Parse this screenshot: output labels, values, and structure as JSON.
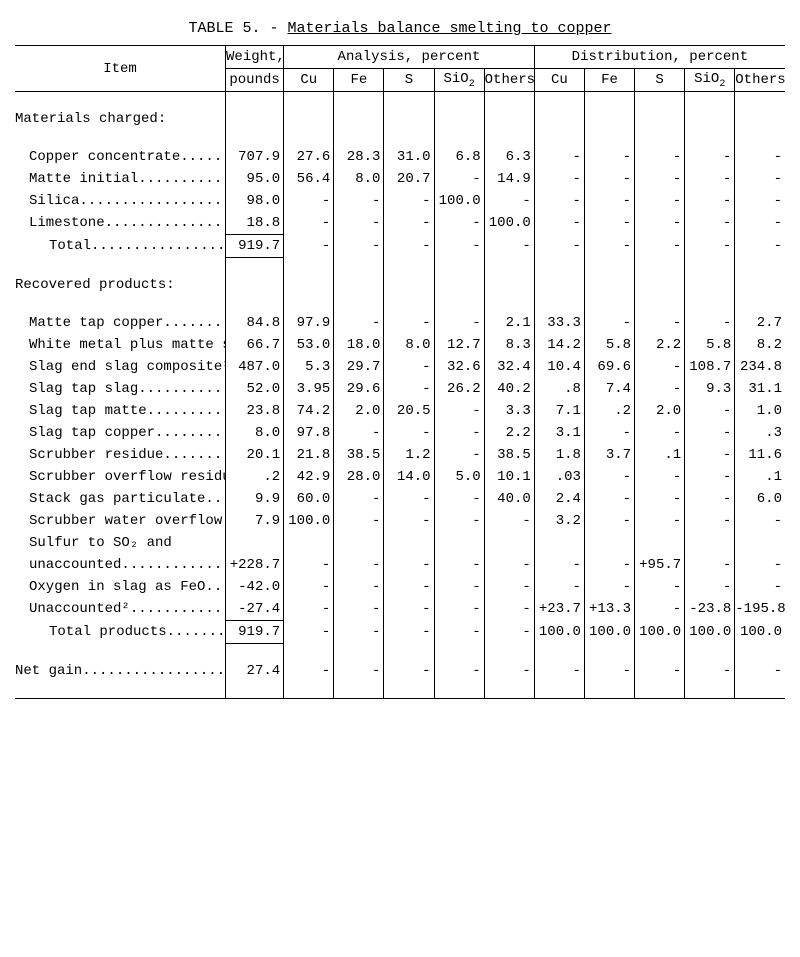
{
  "title_prefix": "TABLE 5. - ",
  "title_main": "Materials balance smelting to copper",
  "headers": {
    "item": "Item",
    "weight_top": "Weight,",
    "weight_bot": "pounds",
    "analysis": "Analysis, percent",
    "distribution": "Distribution, percent",
    "cols": [
      "Cu",
      "Fe",
      "S",
      "SiO",
      "Others",
      "Cu",
      "Fe",
      "S",
      "SiO",
      "Others"
    ],
    "sub2": "2"
  },
  "sections": {
    "charged": "Materials charged:",
    "recovered": "Recovered products:"
  },
  "rows": [
    {
      "k": "charged_hdr",
      "section": true,
      "label": "Materials charged:",
      "indent": 0
    },
    {
      "k": "spacer1",
      "blank": true
    },
    {
      "k": "cu_conc",
      "label": "Copper concentrate.........",
      "indent": 1,
      "wt": "707.9",
      "a": [
        "27.6",
        "28.3",
        "31.0",
        "6.8",
        "6.3"
      ],
      "d": [
        "-",
        "-",
        "-",
        "-",
        "-"
      ]
    },
    {
      "k": "matte_init",
      "label": "Matte initial..............",
      "indent": 1,
      "wt": "95.0",
      "a": [
        "56.4",
        "8.0",
        "20.7",
        "-",
        "14.9"
      ],
      "d": [
        "-",
        "-",
        "-",
        "-",
        "-"
      ]
    },
    {
      "k": "silica",
      "label": "Silica.....................",
      "indent": 1,
      "wt": "98.0",
      "a": [
        "-",
        "-",
        "-",
        "100.0",
        "-"
      ],
      "d": [
        "-",
        "-",
        "-",
        "-",
        "-"
      ]
    },
    {
      "k": "limestone",
      "label": "Limestone..................",
      "indent": 1,
      "wt": "18.8",
      "a": [
        "-",
        "-",
        "-",
        "-",
        "100.0"
      ],
      "d": [
        "-",
        "-",
        "-",
        "-",
        "-"
      ],
      "total_under": true
    },
    {
      "k": "total_charged",
      "label": "Total.................",
      "indent": 2,
      "wt": "919.7",
      "a": [
        "-",
        "-",
        "-",
        "-",
        "-"
      ],
      "d": [
        "-",
        "-",
        "-",
        "-",
        "-"
      ],
      "wt_box": true
    },
    {
      "k": "spacer2",
      "blank": true
    },
    {
      "k": "recovered_hdr",
      "section": true,
      "label": "Recovered products:",
      "indent": 0
    },
    {
      "k": "spacer3",
      "blank": true
    },
    {
      "k": "matte_tap_cu",
      "label": "Matte tap copper...........",
      "indent": 1,
      "wt": "84.8",
      "a": [
        "97.9",
        "-",
        "-",
        "-",
        "2.1"
      ],
      "d": [
        "33.3",
        "-",
        "-",
        "-",
        "2.7"
      ]
    },
    {
      "k": "white_metal",
      "label": "White metal plus matte slag",
      "indent": 1,
      "wt": "66.7",
      "a": [
        "53.0",
        "18.0",
        "8.0",
        "12.7",
        "8.3"
      ],
      "d": [
        "14.2",
        "5.8",
        "2.2",
        "5.8",
        "8.2"
      ]
    },
    {
      "k": "slag_end",
      "label": "Slag end slag composite¹...",
      "indent": 1,
      "wt": "487.0",
      "a": [
        "5.3",
        "29.7",
        "-",
        "32.6",
        "32.4"
      ],
      "d": [
        "10.4",
        "69.6",
        "-",
        "108.7",
        "234.8"
      ]
    },
    {
      "k": "slag_tap_slag",
      "label": "Slag tap slag..............",
      "indent": 1,
      "wt": "52.0",
      "a": [
        "3.95",
        "29.6",
        "-",
        "26.2",
        "40.2"
      ],
      "d": [
        ".8",
        "7.4",
        "-",
        "9.3",
        "31.1"
      ]
    },
    {
      "k": "slag_tap_matte",
      "label": "Slag tap matte.............",
      "indent": 1,
      "wt": "23.8",
      "a": [
        "74.2",
        "2.0",
        "20.5",
        "-",
        "3.3"
      ],
      "d": [
        "7.1",
        ".2",
        "2.0",
        "-",
        "1.0"
      ]
    },
    {
      "k": "slag_tap_cu",
      "label": "Slag tap copper............",
      "indent": 1,
      "wt": "8.0",
      "a": [
        "97.8",
        "-",
        "-",
        "-",
        "2.2"
      ],
      "d": [
        "3.1",
        "-",
        "-",
        "-",
        ".3"
      ]
    },
    {
      "k": "scrub_res",
      "label": "Scrubber residue...........",
      "indent": 1,
      "wt": "20.1",
      "a": [
        "21.8",
        "38.5",
        "1.2",
        "-",
        "38.5"
      ],
      "d": [
        "1.8",
        "3.7",
        ".1",
        "-",
        "11.6"
      ]
    },
    {
      "k": "scrub_over_res",
      "label": "Scrubber overflow residue..",
      "indent": 1,
      "wt": ".2",
      "a": [
        "42.9",
        "28.0",
        "14.0",
        "5.0",
        "10.1"
      ],
      "d": [
        ".03",
        "-",
        "-",
        "-",
        ".1"
      ]
    },
    {
      "k": "stack_gas",
      "label": "Stack gas particulate......",
      "indent": 1,
      "wt": "9.9",
      "a": [
        "60.0",
        "-",
        "-",
        "-",
        "40.0"
      ],
      "d": [
        "2.4",
        "-",
        "-",
        "-",
        "6.0"
      ]
    },
    {
      "k": "scrub_water",
      "label": "Scrubber water overflow....",
      "indent": 1,
      "wt": "7.9",
      "a": [
        "100.0",
        "-",
        "-",
        "-",
        "-"
      ],
      "d": [
        "3.2",
        "-",
        "-",
        "-",
        "-"
      ]
    },
    {
      "k": "sulfur_line1",
      "label": "Sulfur to SO₂ and",
      "indent": 1,
      "wt": "",
      "a": [
        "",
        "",
        "",
        "",
        ""
      ],
      "d": [
        "",
        "",
        "",
        "",
        ""
      ]
    },
    {
      "k": "sulfur_line2",
      "label": " unaccounted...............",
      "indent": 1,
      "wt": "+228.7",
      "a": [
        "-",
        "-",
        "-",
        "-",
        "-"
      ],
      "d": [
        "-",
        "-",
        "+95.7",
        "-",
        "-"
      ]
    },
    {
      "k": "oxy_slag",
      "label": "Oxygen in slag as FeO......",
      "indent": 1,
      "wt": "-42.0",
      "a": [
        "-",
        "-",
        "-",
        "-",
        "-"
      ],
      "d": [
        "-",
        "-",
        "-",
        "-",
        "-"
      ]
    },
    {
      "k": "unacct",
      "label": "Unaccounted²...............",
      "indent": 1,
      "wt": "-27.4",
      "a": [
        "-",
        "-",
        "-",
        "-",
        "-"
      ],
      "d": [
        "+23.7",
        "+13.3",
        "-",
        "-23.8",
        "-195.8"
      ],
      "total_under": true
    },
    {
      "k": "total_prod",
      "label": "Total products........",
      "indent": 2,
      "wt": "919.7",
      "a": [
        "-",
        "-",
        "-",
        "-",
        "-"
      ],
      "d": [
        "100.0",
        "100.0",
        "100.0",
        "100.0",
        "100.0"
      ],
      "wt_box": true
    },
    {
      "k": "spacer4",
      "blank": true
    },
    {
      "k": "net_gain",
      "label": "Net gain....................",
      "indent": 0,
      "wt": "27.4",
      "a": [
        "-",
        "-",
        "-",
        "-",
        "-"
      ],
      "d": [
        "-",
        "-",
        "-",
        "-",
        "-"
      ]
    },
    {
      "k": "spacer5",
      "blank": true,
      "end": true
    }
  ]
}
